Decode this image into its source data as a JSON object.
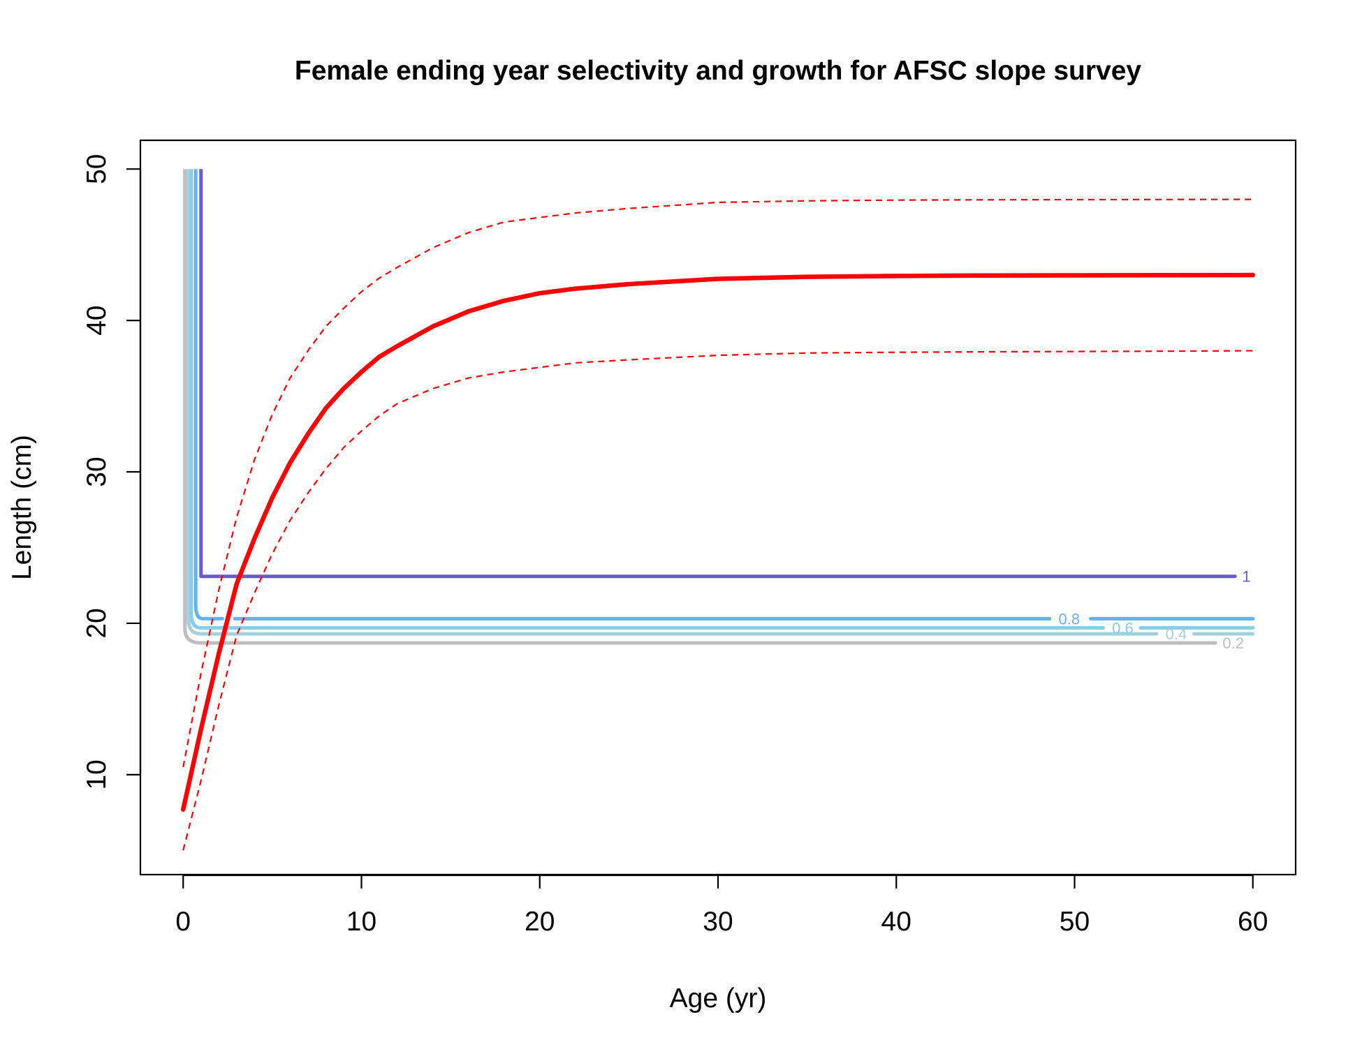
{
  "chart_data": {
    "type": "line",
    "title": "Female ending year selectivity and growth for AFSC slope survey",
    "xlabel": "Age (yr)",
    "ylabel": "Length (cm)",
    "xlim": [
      -2.4,
      62.4
    ],
    "ylim": [
      3.4,
      51.9
    ],
    "xticks": [
      0,
      10,
      20,
      30,
      40,
      50,
      60
    ],
    "yticks": [
      10,
      20,
      30,
      40,
      50
    ],
    "grid": false,
    "legend": "none",
    "growth": {
      "color": "#ff0000",
      "ages": [
        0,
        1,
        2,
        3,
        4,
        5,
        6,
        7,
        8,
        9,
        10,
        11,
        12,
        14,
        16,
        18,
        20,
        22,
        25,
        30,
        35,
        40,
        45,
        50,
        55,
        60
      ],
      "mean": [
        7.7,
        13.0,
        18.0,
        22.6,
        25.6,
        28.3,
        30.6,
        32.5,
        34.2,
        35.5,
        36.6,
        37.6,
        38.3,
        39.6,
        40.6,
        41.3,
        41.8,
        42.1,
        42.4,
        42.75,
        42.88,
        42.94,
        42.97,
        42.98,
        42.99,
        43.0
      ],
      "upper": [
        10.5,
        16.7,
        22.2,
        27.0,
        30.8,
        33.8,
        36.2,
        38.0,
        39.6,
        40.8,
        41.9,
        42.8,
        43.5,
        44.8,
        45.8,
        46.5,
        46.8,
        47.1,
        47.4,
        47.8,
        47.9,
        47.95,
        47.97,
        47.98,
        47.99,
        48.0
      ],
      "lower": [
        5.0,
        9.6,
        14.6,
        19.2,
        22.0,
        24.6,
        26.8,
        28.6,
        30.2,
        31.6,
        32.7,
        33.7,
        34.5,
        35.5,
        36.2,
        36.6,
        36.9,
        37.2,
        37.4,
        37.7,
        37.85,
        37.9,
        37.93,
        37.95,
        37.97,
        38.0
      ]
    },
    "selectivity_contours": [
      {
        "level": "1",
        "color": "#6a5acd",
        "vertical_age": 1.0,
        "corner_age": 1.0,
        "length": 23.1,
        "line_end": 59.0,
        "label_age": 59.4,
        "gaps": []
      },
      {
        "level": "0.8",
        "color": "#64b2f2",
        "vertical_age": 0.7,
        "corner_age": 1.1,
        "length": 20.3,
        "line_end": 60,
        "label_age": 49.1,
        "gaps": [
          [
            2.2,
            2.9
          ],
          [
            48.6,
            50.9
          ]
        ]
      },
      {
        "level": "0.6",
        "color": "#87ceeb",
        "vertical_age": 0.45,
        "corner_age": 1.0,
        "length": 19.7,
        "line_end": 60,
        "label_age": 52.1,
        "gaps": [
          [
            51.6,
            53.7
          ]
        ]
      },
      {
        "level": "0.4",
        "color": "#a7d0dc",
        "vertical_age": 0.3,
        "corner_age": 1.0,
        "length": 19.3,
        "line_end": 60,
        "label_age": 55.1,
        "gaps": [
          [
            54.6,
            56.7
          ]
        ]
      },
      {
        "level": "0.2",
        "color": "#bebebe",
        "vertical_age": 0.1,
        "corner_age": 1.0,
        "length": 18.7,
        "line_end": 57.9,
        "label_age": 58.3,
        "gaps": []
      }
    ],
    "contour_top_length": 50
  }
}
